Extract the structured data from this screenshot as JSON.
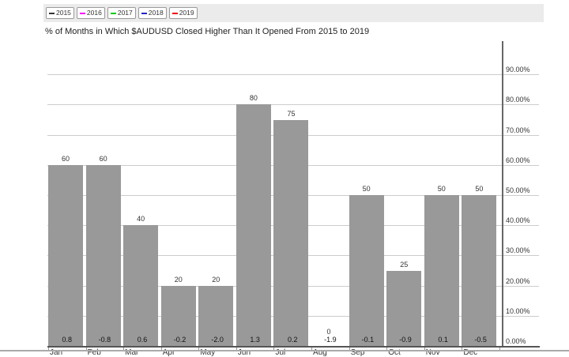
{
  "title": "% of Months in Which $AUDUSD Closed Higher Than It Opened From 2015 to 2019",
  "legend": {
    "items": [
      {
        "label": "2015",
        "color": "#333333"
      },
      {
        "label": "2016",
        "color": "#ff00ff"
      },
      {
        "label": "2017",
        "color": "#00cc00"
      },
      {
        "label": "2018",
        "color": "#2222cc"
      },
      {
        "label": "2019",
        "color": "#ee0000"
      }
    ]
  },
  "colors": {
    "bar": "#999999",
    "gridline": "#cccccc",
    "axis": "#666666",
    "legend_strip_bg": "#ebebeb"
  },
  "chart_data": {
    "type": "bar",
    "title": "% of Months in Which $AUDUSD Closed Higher Than It Opened From 2015 to 2019",
    "categories": [
      "Jan",
      "Feb",
      "Mar",
      "Apr",
      "May",
      "Jun",
      "Jul",
      "Aug",
      "Sep",
      "Oct",
      "Nov",
      "Dec"
    ],
    "values": [
      60,
      60,
      40,
      20,
      20,
      80,
      75,
      0,
      50,
      25,
      50,
      50
    ],
    "bar_value_labels": [
      "60",
      "60",
      "40",
      "20",
      "20",
      "80",
      "75",
      "0",
      "50",
      "25",
      "50",
      "50"
    ],
    "avg_change_labels": [
      "0.8",
      "-0.8",
      "0.6",
      "-0.2",
      "-2.0",
      "1.3",
      "0.2",
      "-1.9",
      "-0.1",
      "-0.9",
      "0.1",
      "-0.5"
    ],
    "xlabel": "",
    "ylabel": "",
    "ylim": [
      0,
      100
    ],
    "yticks": [
      "0.00%",
      "10.00%",
      "20.00%",
      "30.00%",
      "40.00%",
      "50.00%",
      "60.00%",
      "70.00%",
      "80.00%",
      "90.00%"
    ],
    "grid": true,
    "legend_position": "top",
    "legend_entries": [
      "2015",
      "2016",
      "2017",
      "2018",
      "2019"
    ],
    "y_axis_side": "right"
  }
}
